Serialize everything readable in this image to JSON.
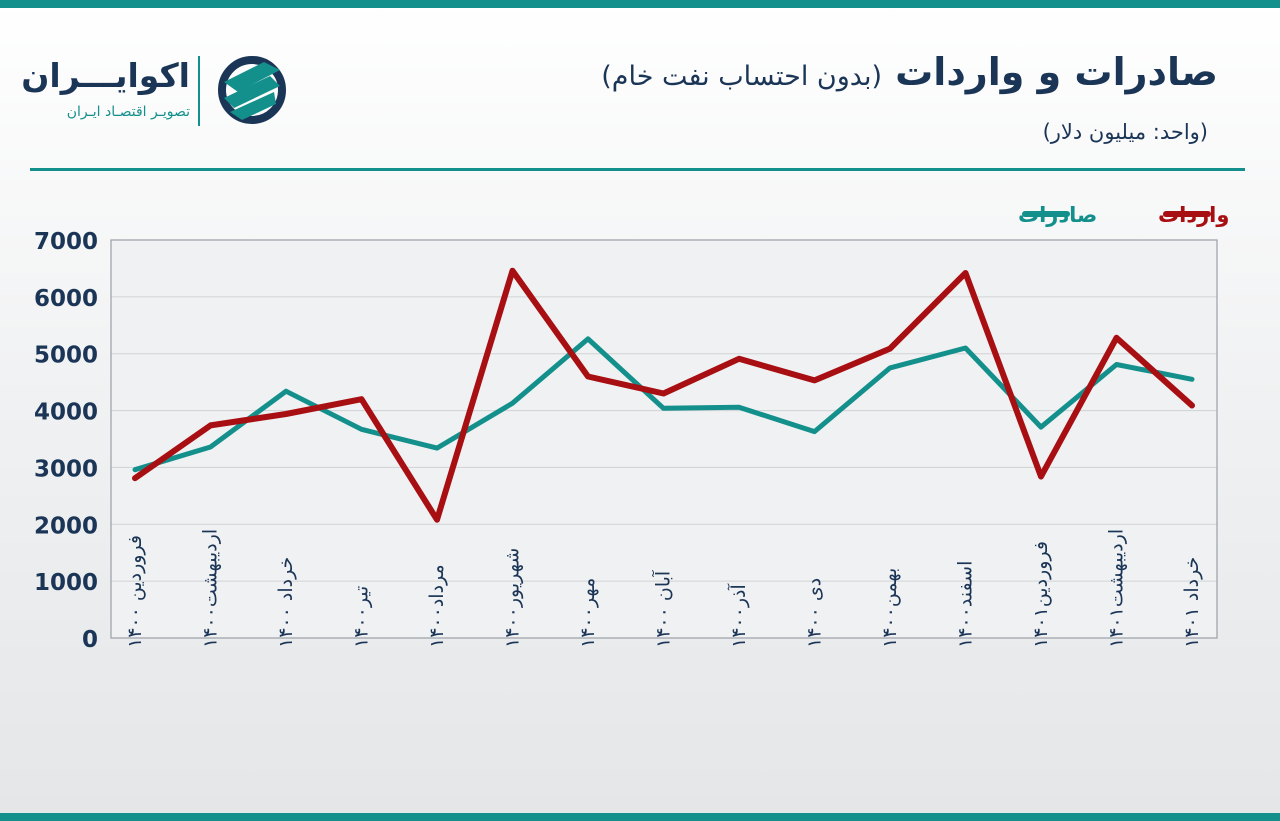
{
  "header": {
    "title": "صادرات و واردات",
    "subtitle": "(بدون احتساب نفت خام)",
    "unit": "(واحد: میلیون دلار)"
  },
  "brand": {
    "name": "اکوایـــران",
    "tagline": "تصویـر اقتصـاد ایـران",
    "icon": "ecoiran-logo-icon"
  },
  "colors": {
    "exports": "#14908c",
    "imports": "#a80f12",
    "text": "#1b3557",
    "grid": "#cfd2d5"
  },
  "chart_data": {
    "type": "line",
    "categories": [
      "فروردین ۱۴۰۰",
      "اردیبهشت۱۴۰۰",
      "خرداد ۱۴۰۰",
      "تیر۱۴۰۰",
      "مرداد۱۴۰۰",
      "شهریور۱۴۰۰",
      "مهر۱۴۰۰",
      "آبان ۱۴۰۰",
      "آذر۱۴۰۰",
      "دی ۱۴۰۰",
      "بهمن۱۴۰۰",
      "اسفند۱۴۰۰",
      "فروردین۱۴۰۱",
      "اردیبهشت۱۴۰۱",
      "خرداد ۱۴۰۱"
    ],
    "series": [
      {
        "name": "صادرات",
        "color": "#14908c",
        "values": [
          2960,
          3360,
          4340,
          3670,
          3340,
          4130,
          5260,
          4040,
          4060,
          3630,
          4750,
          5100,
          3710,
          4810,
          4550
        ]
      },
      {
        "name": "واردات",
        "color": "#a80f12",
        "values": [
          2810,
          3740,
          3940,
          4200,
          2080,
          6460,
          4600,
          4300,
          4910,
          4530,
          5090,
          6420,
          2840,
          5280,
          4090
        ]
      }
    ],
    "ylim": [
      0,
      7000
    ],
    "yticks": [
      "0",
      "1000",
      "2000",
      "3000",
      "4000",
      "5000",
      "6000",
      "7000"
    ],
    "grid": true,
    "legend_position": "top-right"
  }
}
